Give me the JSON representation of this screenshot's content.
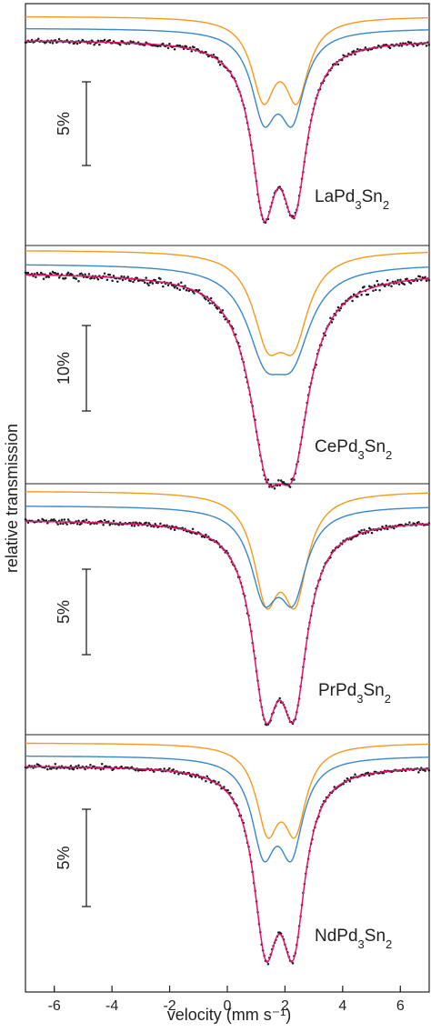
{
  "chart_data": {
    "type": "line",
    "xlabel": "velocity (mm s⁻¹)",
    "ylabel": "relative transmission",
    "xlim": [
      -7,
      7
    ],
    "xticks": [
      -6,
      -4,
      -2,
      0,
      2,
      4,
      6
    ],
    "grid": false,
    "legend": "none",
    "colors": {
      "fit": "#e0116f",
      "data": "#1a1a1a",
      "component_orange": "#f39a1e",
      "component_blue": "#3b87c8"
    },
    "panels": [
      {
        "label": "LaPd3Sn2",
        "label_parts": [
          "LaPd",
          "3",
          "Sn",
          "2"
        ],
        "scale_bar_label": "5%",
        "scale_bar_percent": 5,
        "components": [
          {
            "color": "orange",
            "center": 1.83,
            "quadrupole_splitting": 1.15,
            "relative_depth": 0.46,
            "linewidth": 1.0
          },
          {
            "color": "blue",
            "center": 1.76,
            "quadrupole_splitting": 0.98,
            "relative_depth": 0.54,
            "linewidth": 1.05
          }
        ]
      },
      {
        "label": "CePd3Sn2",
        "label_parts": [
          "CePd",
          "3",
          "Sn",
          "2"
        ],
        "scale_bar_label": "10%",
        "scale_bar_percent": 10,
        "components": [
          {
            "color": "orange",
            "center": 1.85,
            "quadrupole_splitting": 0.9,
            "relative_depth": 0.42,
            "linewidth": 1.25
          },
          {
            "color": "blue",
            "center": 1.78,
            "quadrupole_splitting": 0.95,
            "relative_depth": 0.58,
            "linewidth": 1.55
          }
        ]
      },
      {
        "label": "PrPd3Sn2",
        "label_parts": [
          "PrPd",
          "3",
          "Sn",
          "2"
        ],
        "scale_bar_label": "5%",
        "scale_bar_percent": 5,
        "components": [
          {
            "color": "orange",
            "center": 1.85,
            "quadrupole_splitting": 1.0,
            "relative_depth": 0.46,
            "linewidth": 1.05
          },
          {
            "color": "blue",
            "center": 1.78,
            "quadrupole_splitting": 1.0,
            "relative_depth": 0.54,
            "linewidth": 1.15
          }
        ]
      },
      {
        "label": "NdPd3Sn2",
        "label_parts": [
          "NdPd",
          "3",
          "Sn",
          "2"
        ],
        "scale_bar_label": "5%",
        "scale_bar_percent": 5,
        "components": [
          {
            "color": "orange",
            "center": 1.87,
            "quadrupole_splitting": 0.95,
            "relative_depth": 0.5,
            "linewidth": 0.95
          },
          {
            "color": "blue",
            "center": 1.74,
            "quadrupole_splitting": 0.96,
            "relative_depth": 0.5,
            "linewidth": 1.0
          }
        ]
      }
    ]
  }
}
